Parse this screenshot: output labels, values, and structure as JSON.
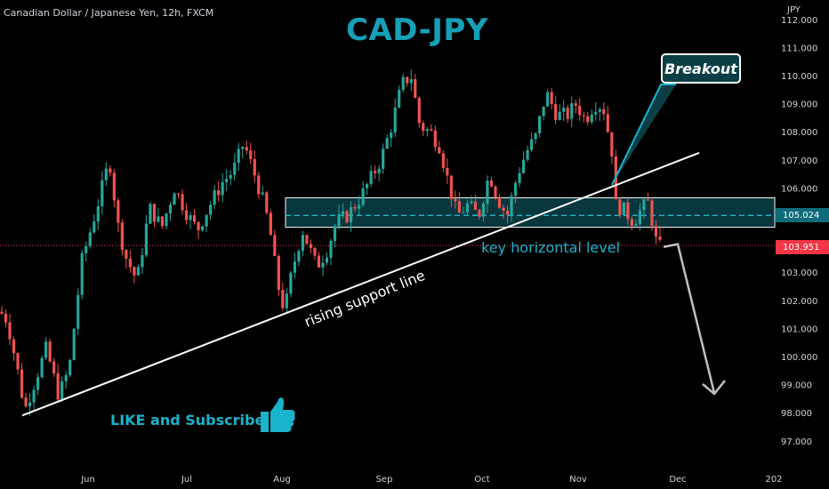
{
  "header": {
    "symbol": "Canadian Dollar / Japanese Yen, 12h, FXCM",
    "title": "CAD-JPY",
    "currency": "JPY"
  },
  "annotations": {
    "breakout": "Breakout",
    "key_level": "key horizontal level",
    "support_line": "rising support line",
    "like": "LIKE and Subscribe"
  },
  "price_tags": {
    "key_level": "105.024",
    "last_price": "103.951"
  },
  "colors": {
    "up": "#26a69a",
    "down": "#ef5350",
    "accent": "#16a0b8",
    "zone_fill": "#0b4a52",
    "last_price": "#f23645"
  },
  "icons": [
    "thumbs-up-icon"
  ],
  "chart_data": {
    "type": "candlestick",
    "title": "CAD-JPY",
    "symbol": "Canadian Dollar / Japanese Yen, 12h, FXCM",
    "ylim": [
      96.5,
      112.3
    ],
    "y_ticks": [
      "112.000",
      "111.000",
      "110.000",
      "109.000",
      "108.000",
      "107.000",
      "106.000",
      "105.000",
      "104.000",
      "103.000",
      "102.000",
      "101.000",
      "100.000",
      "99.000",
      "98.000",
      "97.000"
    ],
    "x_ticks": [
      "Jun",
      "Jul",
      "Aug",
      "Sep",
      "Oct",
      "Nov",
      "Dec",
      "202"
    ],
    "price_path": [
      [
        0,
        101.6
      ],
      [
        8,
        101.3
      ],
      [
        18,
        99.8
      ],
      [
        28,
        98.1
      ],
      [
        40,
        99.2
      ],
      [
        52,
        100.3
      ],
      [
        66,
        98.6
      ],
      [
        78,
        99.6
      ],
      [
        92,
        103.4
      ],
      [
        108,
        105.2
      ],
      [
        123,
        107.0
      ],
      [
        133,
        104.6
      ],
      [
        142,
        103.5
      ],
      [
        154,
        102.7
      ],
      [
        168,
        105.3
      ],
      [
        182,
        104.6
      ],
      [
        196,
        106.0
      ],
      [
        210,
        105.1
      ],
      [
        222,
        104.5
      ],
      [
        236,
        105.4
      ],
      [
        250,
        106.2
      ],
      [
        262,
        106.6
      ],
      [
        274,
        107.6
      ],
      [
        286,
        106.5
      ],
      [
        298,
        105.3
      ],
      [
        305,
        104.2
      ],
      [
        312,
        102.6
      ],
      [
        320,
        101.6
      ],
      [
        328,
        103.0
      ],
      [
        340,
        104.5
      ],
      [
        356,
        103.2
      ],
      [
        368,
        103.8
      ],
      [
        378,
        104.8
      ],
      [
        390,
        105.0
      ],
      [
        404,
        105.6
      ],
      [
        418,
        106.4
      ],
      [
        428,
        107.0
      ],
      [
        440,
        108.2
      ],
      [
        452,
        109.7
      ],
      [
        462,
        110.0
      ],
      [
        472,
        108.2
      ],
      [
        484,
        108.0
      ],
      [
        494,
        107.5
      ],
      [
        504,
        106.2
      ],
      [
        514,
        105.0
      ],
      [
        526,
        105.4
      ],
      [
        538,
        105.0
      ],
      [
        550,
        106.5
      ],
      [
        560,
        105.6
      ],
      [
        570,
        105.0
      ],
      [
        582,
        106.5
      ],
      [
        592,
        107.3
      ],
      [
        602,
        107.8
      ],
      [
        614,
        109.4
      ],
      [
        626,
        108.6
      ],
      [
        638,
        108.6
      ],
      [
        648,
        109.0
      ],
      [
        658,
        108.4
      ],
      [
        668,
        109.0
      ],
      [
        678,
        108.9
      ],
      [
        688,
        107.3
      ],
      [
        692,
        105.4
      ],
      [
        702,
        105.2
      ],
      [
        712,
        104.8
      ],
      [
        722,
        105.3
      ],
      [
        730,
        105.5
      ],
      [
        736,
        104.2
      ],
      [
        742,
        103.9
      ]
    ],
    "candle_count": 165,
    "key_level": 105.024,
    "zone": [
      104.6,
      105.65
    ],
    "last_price": 103.951,
    "support_line": {
      "from": [
        "late May",
        97.9
      ],
      "to": [
        "late Nov",
        107.25
      ]
    },
    "projection": {
      "from": 103.9,
      "to": 98.7,
      "pivot": 104.0
    }
  }
}
